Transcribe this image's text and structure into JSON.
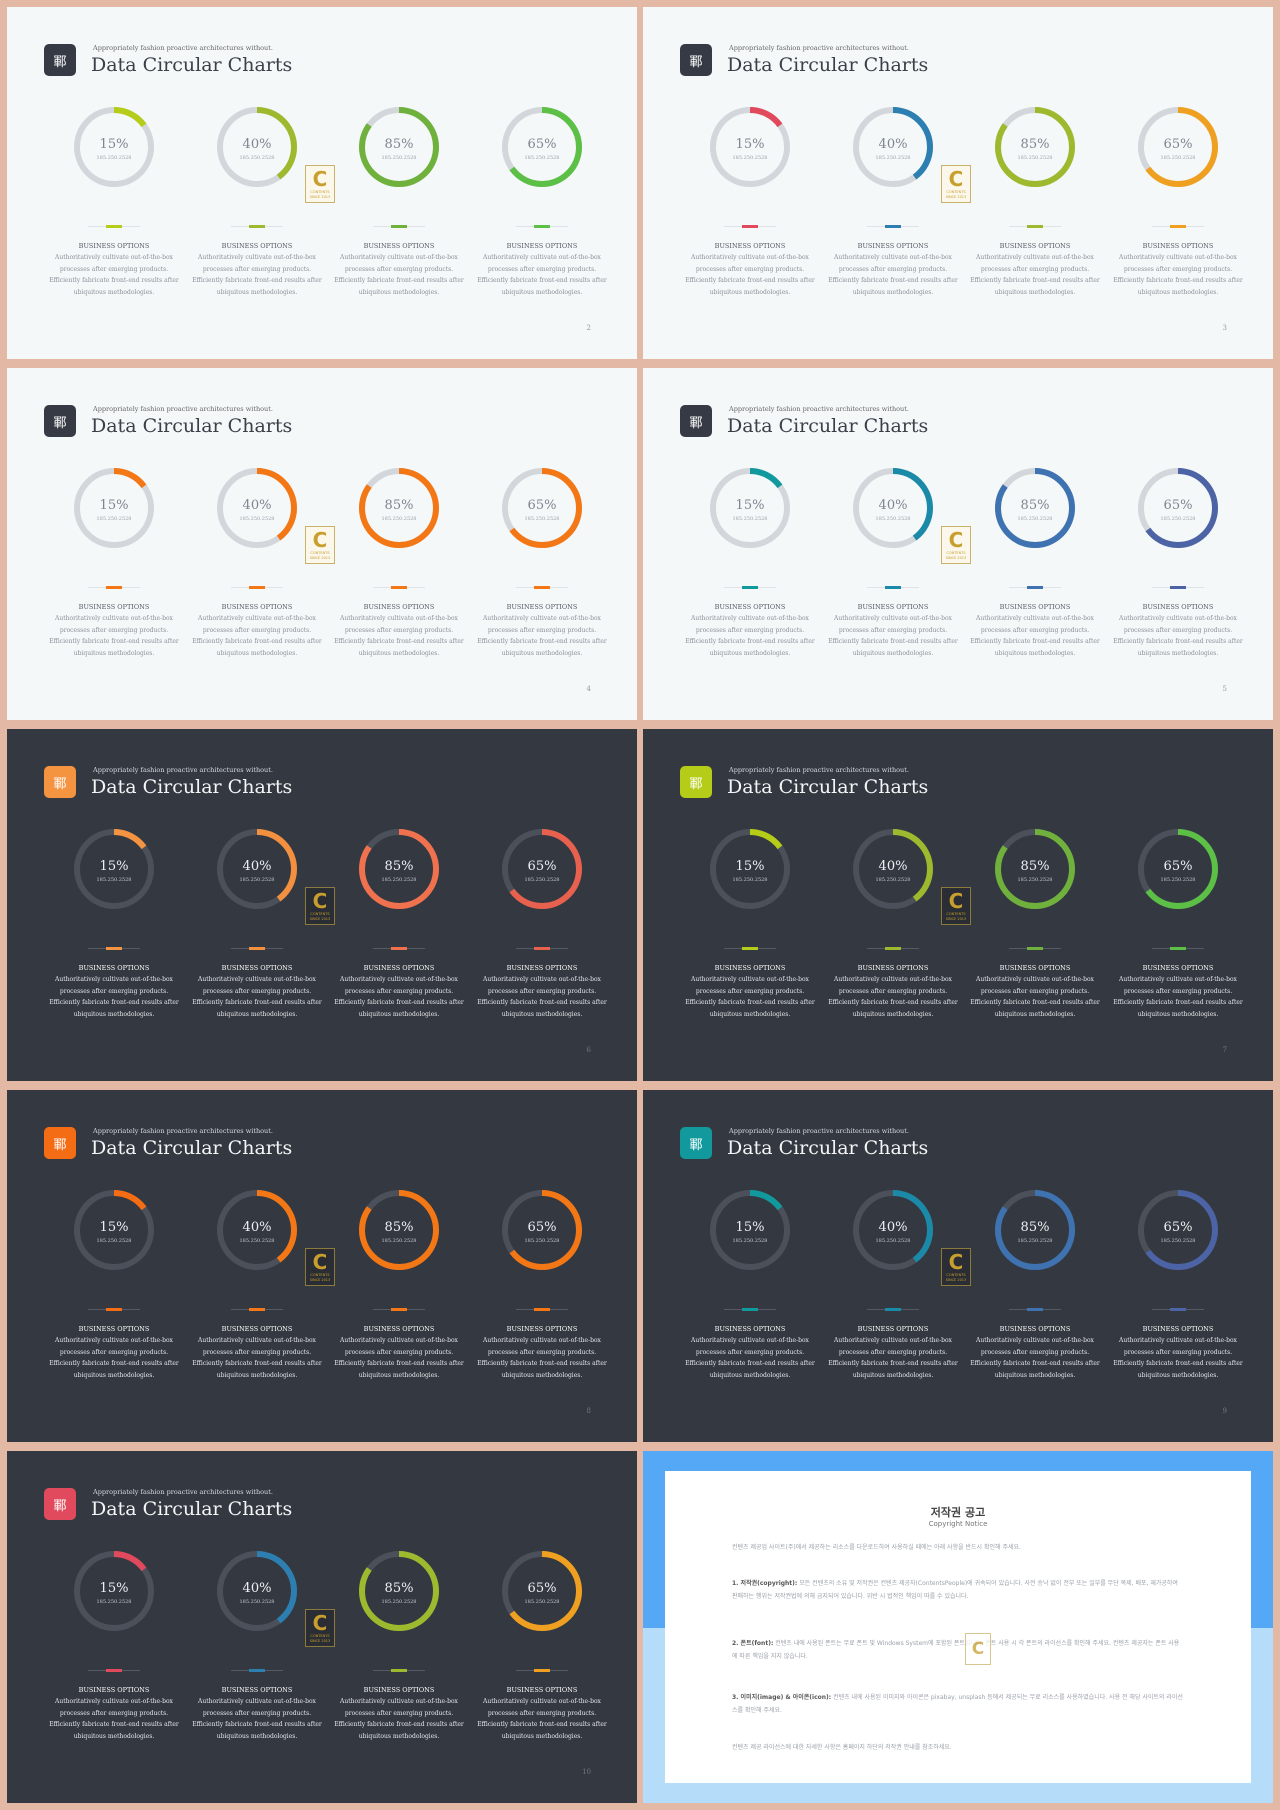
{
  "slides": [
    {
      "theme": "light",
      "badge_color": "#363a45",
      "accent": [
        "#b5cc18",
        "#9dba2e",
        "#6fb13c",
        "#5cbf46"
      ],
      "page": "2"
    },
    {
      "theme": "light",
      "badge_color": "#363a45",
      "accent": [
        "#e04a5c",
        "#2c7fb0",
        "#9dba2e",
        "#f0a020"
      ],
      "page": "3"
    },
    {
      "theme": "light",
      "badge_color": "#363a45",
      "accent": [
        "#f47716",
        "#f47716",
        "#f47716",
        "#f47716"
      ],
      "page": "4"
    },
    {
      "theme": "light",
      "badge_color": "#363a45",
      "accent": [
        "#11999d",
        "#1a8aa8",
        "#3e72b0",
        "#4c63a5"
      ],
      "page": "5"
    },
    {
      "theme": "dark",
      "badge_color": "#f49340",
      "accent": [
        "#f49340",
        "#f29040",
        "#f0714e",
        "#e8604e"
      ],
      "page": "6"
    },
    {
      "theme": "dark",
      "badge_color": "#b5cc18",
      "accent": [
        "#b5cc18",
        "#9dba2e",
        "#6fb13c",
        "#5cbf46"
      ],
      "page": "7"
    },
    {
      "theme": "dark",
      "badge_color": "#f46c14",
      "accent": [
        "#f46c14",
        "#f47716",
        "#f47716",
        "#f47716"
      ],
      "page": "8"
    },
    {
      "theme": "dark",
      "badge_color": "#11999d",
      "accent": [
        "#11999d",
        "#1a8aa8",
        "#3e72b0",
        "#4c63a5"
      ],
      "page": "9"
    },
    {
      "theme": "dark",
      "badge_color": "#e04a5c",
      "accent": [
        "#e04a5c",
        "#2c7fb0",
        "#9dba2e",
        "#f0a020"
      ],
      "page": "10"
    }
  ],
  "common": {
    "badge_icon": "鄆",
    "subtitle": "Appropriately fashion proactive architectures without.",
    "title": "Data Circular Charts",
    "items": [
      {
        "pct": "15%",
        "value": 15
      },
      {
        "pct": "40%",
        "value": 40
      },
      {
        "pct": "85%",
        "value": 85
      },
      {
        "pct": "65%",
        "value": 65
      }
    ],
    "date": "185.250.2528",
    "option_label": "BUSINESS OPTIONS",
    "desc": [
      "Authoritatively cultivate out-of-the-box",
      "processes after emerging products.",
      "Efficiently fabricate front-end results after",
      "ubiquitous methodologies."
    ],
    "logo_letter": "C",
    "logo_word": "CONTENTS",
    "logo_small": "SINCE 2013",
    "track_light": "#d3d6da",
    "track_dark": "#4b505a"
  },
  "notice": {
    "title": "저작권 공고",
    "subtitle": "Copyright Notice",
    "p0": "컨텐츠 제공업 사이트(주)에서 제공하는 리소스를 다운로드하여 사용하실 때에는 아래 사항을 반드시 확인해 주세요.",
    "p1_head": "1. 저작권(copyright):",
    "p1_body": " 모든 컨텐츠의 소유 및 저작권은 컨텐츠 제공자(ContentsPeople)에 귀속되어 있습니다. 사전 승낙 없이 전부 또는 일부를 무단 복제, 배포, 재가공하여 판매하는 행위는 저작권법에 의해 금지되어 있습니다. 위반 시 법적인 책임이 따를 수 있습니다.",
    "p2_head": "2. 폰트(font):",
    "p2_body": " 컨텐츠 내에 사용된 폰트는 무료 폰트 및 Windows System에 포함된 폰트입니다. 폰트 사용 시 각 폰트의 라이선스를 확인해 주세요. 컨텐츠 제공자는 폰트 사용에 따른 책임을 지지 않습니다.",
    "p3_head": "3. 이미지(image) & 아이콘(icon):",
    "p3_body": " 컨텐츠 내에 사용된 이미지와 아이콘은 pixabay, unsplash 등에서 제공되는 무료 리소스를 사용하였습니다. 사용 전 해당 사이트의 라이선스를 확인해 주세요.",
    "p4": "컨텐츠 제공 라이선스에 대한 자세한 사항은 홈페이지 하단의 저작권 안내를 참조하세요.",
    "logo_letter": "C"
  }
}
